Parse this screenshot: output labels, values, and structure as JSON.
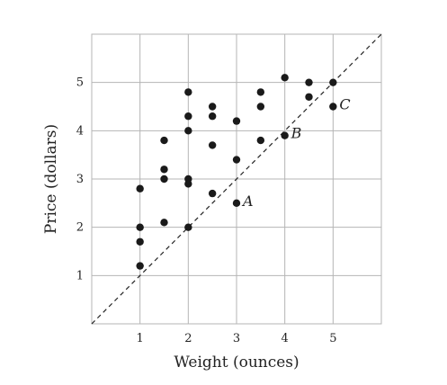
{
  "chart_data": {
    "type": "scatter",
    "title": "",
    "xlabel": "Weight (ounces)",
    "ylabel": "Price (dollars)",
    "xlim": [
      0,
      6
    ],
    "ylim": [
      0,
      6
    ],
    "xticks": [
      "1",
      "2",
      "3",
      "4",
      "5"
    ],
    "yticks": [
      "1",
      "2",
      "3",
      "4",
      "5"
    ],
    "grid": true,
    "reference_line": {
      "style": "dashed",
      "from": [
        0,
        0
      ],
      "to": [
        6,
        6
      ]
    },
    "points": [
      {
        "x": 1,
        "y": 1.2
      },
      {
        "x": 1,
        "y": 1.7
      },
      {
        "x": 1,
        "y": 2.0
      },
      {
        "x": 1,
        "y": 2.8
      },
      {
        "x": 1.5,
        "y": 2.1
      },
      {
        "x": 1.5,
        "y": 3.0
      },
      {
        "x": 1.5,
        "y": 3.2
      },
      {
        "x": 1.5,
        "y": 3.8
      },
      {
        "x": 2,
        "y": 2.0
      },
      {
        "x": 2,
        "y": 2.9
      },
      {
        "x": 2,
        "y": 3.0
      },
      {
        "x": 2,
        "y": 4.0
      },
      {
        "x": 2,
        "y": 4.3
      },
      {
        "x": 2,
        "y": 4.8
      },
      {
        "x": 2.5,
        "y": 2.7
      },
      {
        "x": 2.5,
        "y": 3.7
      },
      {
        "x": 2.5,
        "y": 4.3
      },
      {
        "x": 2.5,
        "y": 4.5
      },
      {
        "x": 3,
        "y": 2.5,
        "label": "A"
      },
      {
        "x": 3,
        "y": 3.4
      },
      {
        "x": 3,
        "y": 4.2
      },
      {
        "x": 3.5,
        "y": 3.8
      },
      {
        "x": 3.5,
        "y": 4.5
      },
      {
        "x": 3.5,
        "y": 4.8
      },
      {
        "x": 4,
        "y": 3.9,
        "label": "B"
      },
      {
        "x": 4,
        "y": 5.1
      },
      {
        "x": 4.5,
        "y": 4.7
      },
      {
        "x": 4.5,
        "y": 5.0
      },
      {
        "x": 5,
        "y": 4.5,
        "label": "C"
      },
      {
        "x": 5,
        "y": 5.0
      }
    ]
  }
}
